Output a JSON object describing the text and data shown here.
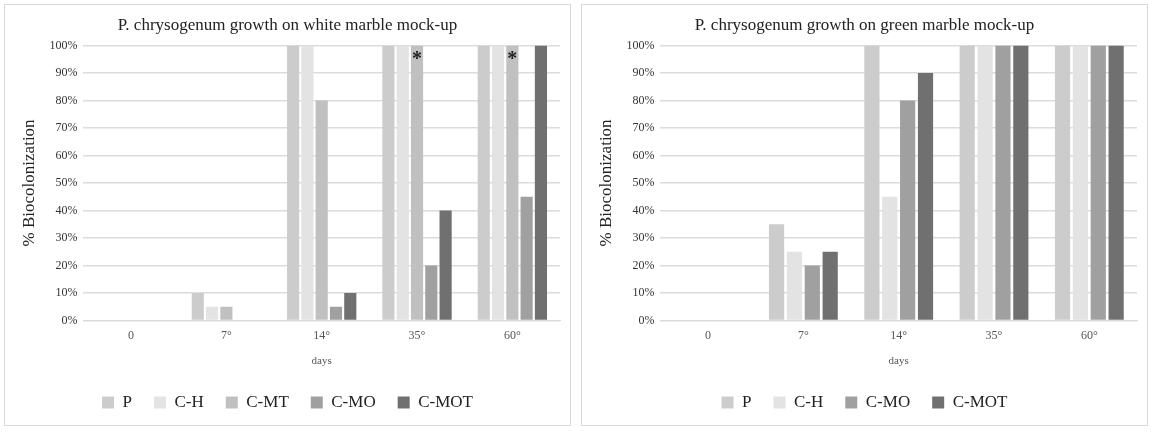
{
  "chart_data": [
    {
      "type": "bar",
      "title": "P. chrysogenum growth on white marble mock-up",
      "xlabel": "days",
      "ylabel": "% Biocolonization",
      "categories": [
        "0",
        "7°",
        "14°",
        "35°",
        "60°"
      ],
      "series": [
        {
          "name": "P",
          "color": "#cccccc",
          "values": [
            0,
            10,
            100,
            100,
            100
          ]
        },
        {
          "name": "C-H",
          "color": "#e3e3e3",
          "values": [
            0,
            5,
            100,
            100,
            100
          ]
        },
        {
          "name": "C-MT",
          "color": "#c0c0c0",
          "values": [
            0,
            5,
            80,
            100,
            100
          ]
        },
        {
          "name": "C-MO",
          "color": "#a0a0a0",
          "values": [
            0,
            0,
            5,
            20,
            45
          ]
        },
        {
          "name": "C-MOT",
          "color": "#707070",
          "values": [
            0,
            0,
            10,
            40,
            100
          ]
        }
      ],
      "ylim": [
        0,
        100
      ],
      "yticks": [
        {
          "value": 0,
          "label": "0%"
        },
        {
          "value": 10,
          "label": "10%"
        },
        {
          "value": 20,
          "label": "20%"
        },
        {
          "value": 30,
          "label": "30%"
        },
        {
          "value": 40,
          "label": "40%"
        },
        {
          "value": 50,
          "label": "50%"
        },
        {
          "value": 60,
          "label": "60%"
        },
        {
          "value": 70,
          "label": "70%"
        },
        {
          "value": 80,
          "label": "80%"
        },
        {
          "value": 90,
          "label": "90%"
        },
        {
          "value": 100,
          "label": "100%"
        }
      ],
      "grid": "y",
      "legend": "bottom",
      "annotations": [
        {
          "text": "*",
          "x": "35°",
          "y": 100
        },
        {
          "text": "*",
          "x": "60°",
          "y": 100
        }
      ]
    },
    {
      "type": "bar",
      "title": "P. chrysogenum growth on green marble mock-up",
      "xlabel": "days",
      "ylabel": "% Biocolonization",
      "categories": [
        "0",
        "7°",
        "14°",
        "35°",
        "60°"
      ],
      "series": [
        {
          "name": "P",
          "color": "#cccccc",
          "values": [
            0,
            35,
            100,
            100,
            100
          ]
        },
        {
          "name": "C-H",
          "color": "#e3e3e3",
          "values": [
            0,
            25,
            45,
            100,
            100
          ]
        },
        {
          "name": "C-MO",
          "color": "#a0a0a0",
          "values": [
            0,
            20,
            80,
            100,
            100
          ]
        },
        {
          "name": "C-MOT",
          "color": "#707070",
          "values": [
            0,
            25,
            90,
            100,
            100
          ]
        }
      ],
      "ylim": [
        0,
        100
      ],
      "yticks": [
        {
          "value": 0,
          "label": "0%"
        },
        {
          "value": 10,
          "label": "10%"
        },
        {
          "value": 20,
          "label": "20%"
        },
        {
          "value": 30,
          "label": "30%"
        },
        {
          "value": 40,
          "label": "40%"
        },
        {
          "value": 50,
          "label": "50%"
        },
        {
          "value": 60,
          "label": "60%"
        },
        {
          "value": 70,
          "label": "70%"
        },
        {
          "value": 80,
          "label": "80%"
        },
        {
          "value": 90,
          "label": "90%"
        },
        {
          "value": 100,
          "label": "100%"
        }
      ],
      "grid": "y",
      "legend": "bottom"
    }
  ]
}
